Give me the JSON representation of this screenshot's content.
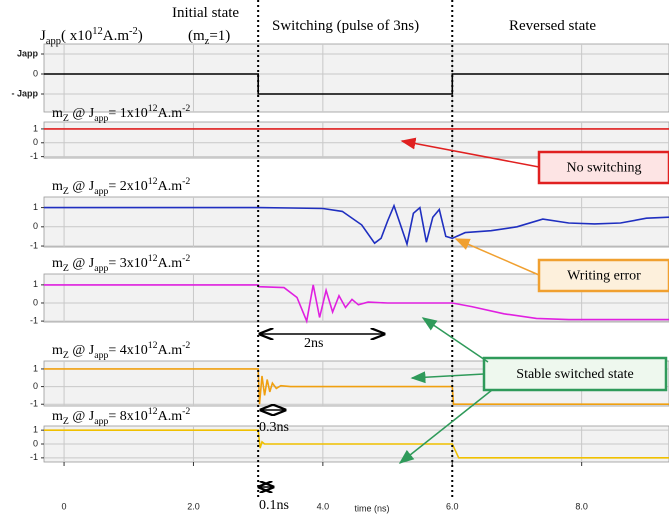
{
  "header": {
    "initial": "Initial state",
    "mz": [
      {
        "text": "(m"
      },
      {
        "text": "z",
        "pos": "sub"
      },
      {
        "text": "=1)"
      }
    ],
    "japp": [
      {
        "text": "J"
      },
      {
        "text": "app",
        "pos": "sub"
      },
      {
        "text": "( x10"
      },
      {
        "text": "12",
        "pos": "sup"
      },
      {
        "text": "A.m"
      },
      {
        "text": "-2",
        "pos": "sup"
      },
      {
        "text": ")"
      }
    ],
    "switching": "Switching (pulse of 3ns)",
    "reversed": "Reversed state"
  },
  "phase_boundaries": [
    3,
    6
  ],
  "annotations": [
    {
      "text": "No switching",
      "color": "#e02020",
      "fill": "#fde4e4"
    },
    {
      "text": "Writing error",
      "color": "#f0a030",
      "fill": "#fdf0dc"
    },
    {
      "text": "Stable switched state",
      "color": "#2f9a5a",
      "fill": "#eef8ee"
    },
    {
      "text": "2ns"
    },
    {
      "text": "0.3ns"
    },
    {
      "text": "0.1ns"
    }
  ],
  "chart_data": [
    {
      "type": "line",
      "color": "#000000",
      "xlim": [
        -0.31,
        9.35
      ],
      "ylim": [
        -1.9,
        1.5
      ],
      "yticks": [
        {
          "value": 1,
          "label": "Japp"
        },
        0,
        {
          "value": -1,
          "label": "- Japp"
        }
      ],
      "x": [
        -0.31,
        3,
        3,
        6,
        6,
        9.35
      ],
      "values": [
        0,
        0,
        -1,
        -1,
        0,
        0
      ]
    },
    {
      "type": "line",
      "color": "#e02020",
      "xlim": [
        -0.31,
        9.35
      ],
      "ylim": [
        -1.1,
        1.5
      ],
      "yticks": [
        1,
        0,
        -1
      ],
      "title": [
        {
          "text": "m"
        },
        {
          "text": "Z",
          "pos": "sub"
        },
        {
          "text": " @ J"
        },
        {
          "text": "app",
          "pos": "sub"
        },
        {
          "text": "= 1x10"
        },
        {
          "text": "12",
          "pos": "sup"
        },
        {
          "text": "A.m"
        },
        {
          "text": "-2",
          "pos": "sup"
        }
      ],
      "x": [
        -0.31,
        9.35
      ],
      "values": [
        1,
        1
      ]
    },
    {
      "type": "line",
      "color": "#1f2fc0",
      "xlim": [
        -0.31,
        9.35
      ],
      "ylim": [
        -1.05,
        1.55
      ],
      "yticks": [
        1,
        0,
        -1
      ],
      "title": [
        {
          "text": "m"
        },
        {
          "text": "Z",
          "pos": "sub"
        },
        {
          "text": " @ J"
        },
        {
          "text": "app",
          "pos": "sub"
        },
        {
          "text": "= 2x10"
        },
        {
          "text": "12",
          "pos": "sup"
        },
        {
          "text": "A.m"
        },
        {
          "text": "-2",
          "pos": "sup"
        }
      ],
      "x": [
        -0.31,
        3,
        3.5,
        4,
        4.3,
        4.6,
        4.8,
        4.9,
        5.0,
        5.1,
        5.2,
        5.3,
        5.4,
        5.5,
        5.6,
        5.7,
        5.8,
        5.9,
        6.0,
        6.2,
        6.6,
        7.0,
        7.4,
        7.8,
        8.2,
        8.6,
        9.0,
        9.35
      ],
      "values": [
        1,
        1,
        0.98,
        0.95,
        0.8,
        0.1,
        -0.85,
        -0.6,
        0.3,
        1.1,
        0.1,
        -0.9,
        0.7,
        1.0,
        -0.8,
        0.5,
        0.9,
        -0.5,
        -0.6,
        -0.3,
        -0.2,
        0.0,
        0.4,
        0.2,
        0.15,
        0.2,
        0.45,
        0.5
      ]
    },
    {
      "type": "line",
      "color": "#e020e0",
      "xlim": [
        -0.31,
        9.35
      ],
      "ylim": [
        -1.05,
        1.6
      ],
      "yticks": [
        1,
        0,
        -1
      ],
      "title": [
        {
          "text": "m"
        },
        {
          "text": "Z",
          "pos": "sub"
        },
        {
          "text": " @ J"
        },
        {
          "text": "app",
          "pos": "sub"
        },
        {
          "text": "= 3x10"
        },
        {
          "text": "12",
          "pos": "sup"
        },
        {
          "text": "A.m"
        },
        {
          "text": "-2",
          "pos": "sup"
        }
      ],
      "x": [
        -0.31,
        3,
        3.01,
        3.4,
        3.6,
        3.75,
        3.85,
        3.95,
        4.05,
        4.15,
        4.25,
        4.35,
        4.45,
        4.55,
        4.7,
        5,
        6,
        6.3,
        6.8,
        7.3,
        7.8,
        9.35
      ],
      "values": [
        1,
        1,
        0.9,
        0.85,
        0.3,
        -1,
        1,
        -0.8,
        0.7,
        -0.5,
        0.4,
        -0.25,
        0.2,
        -0.1,
        0.05,
        0,
        0,
        -0.2,
        -0.6,
        -0.85,
        -0.92,
        -0.92
      ]
    },
    {
      "type": "line",
      "color": "#f0a010",
      "xlim": [
        -0.31,
        9.35
      ],
      "ylim": [
        -1.1,
        1.45
      ],
      "yticks": [
        1,
        0,
        -1
      ],
      "title": [
        {
          "text": "m"
        },
        {
          "text": "Z",
          "pos": "sub"
        },
        {
          "text": " @ J"
        },
        {
          "text": "app",
          "pos": "sub"
        },
        {
          "text": "= 4x10"
        },
        {
          "text": "12",
          "pos": "sup"
        },
        {
          "text": "A.m"
        },
        {
          "text": "-2",
          "pos": "sup"
        }
      ],
      "x": [
        -0.31,
        3,
        3.02,
        3.06,
        3.1,
        3.14,
        3.18,
        3.22,
        3.28,
        3.35,
        3.5,
        6,
        6.02,
        9.35
      ],
      "values": [
        1,
        1,
        -1,
        0.6,
        -0.5,
        0.4,
        -0.3,
        0.2,
        -0.1,
        0.05,
        0,
        0,
        -1,
        -1
      ]
    },
    {
      "type": "line",
      "color": "#f0c000",
      "xlim": [
        -0.31,
        9.35
      ],
      "ylim": [
        -1.3,
        1.3
      ],
      "yticks": [
        1,
        0,
        -1
      ],
      "title": [
        {
          "text": "m"
        },
        {
          "text": "Z",
          "pos": "sub"
        },
        {
          "text": " @ J"
        },
        {
          "text": "app",
          "pos": "sub"
        },
        {
          "text": "= 8x10"
        },
        {
          "text": "12",
          "pos": "sup"
        },
        {
          "text": "A.m"
        },
        {
          "text": "-2",
          "pos": "sup"
        }
      ],
      "x": [
        -0.31,
        3,
        3.03,
        3.06,
        3.1,
        6,
        6.05,
        6.1,
        9.35
      ],
      "values": [
        1,
        1,
        -0.3,
        0.15,
        0,
        0,
        -0.5,
        -1,
        -1
      ],
      "xticks": [
        0,
        {
          "value": 2,
          "label": "2.0"
        },
        {
          "value": 4,
          "label": "4.0"
        },
        {
          "value": 6,
          "label": "6.0"
        },
        {
          "value": 8,
          "label": "8.0"
        }
      ],
      "xlabel": "time (ns)"
    }
  ]
}
